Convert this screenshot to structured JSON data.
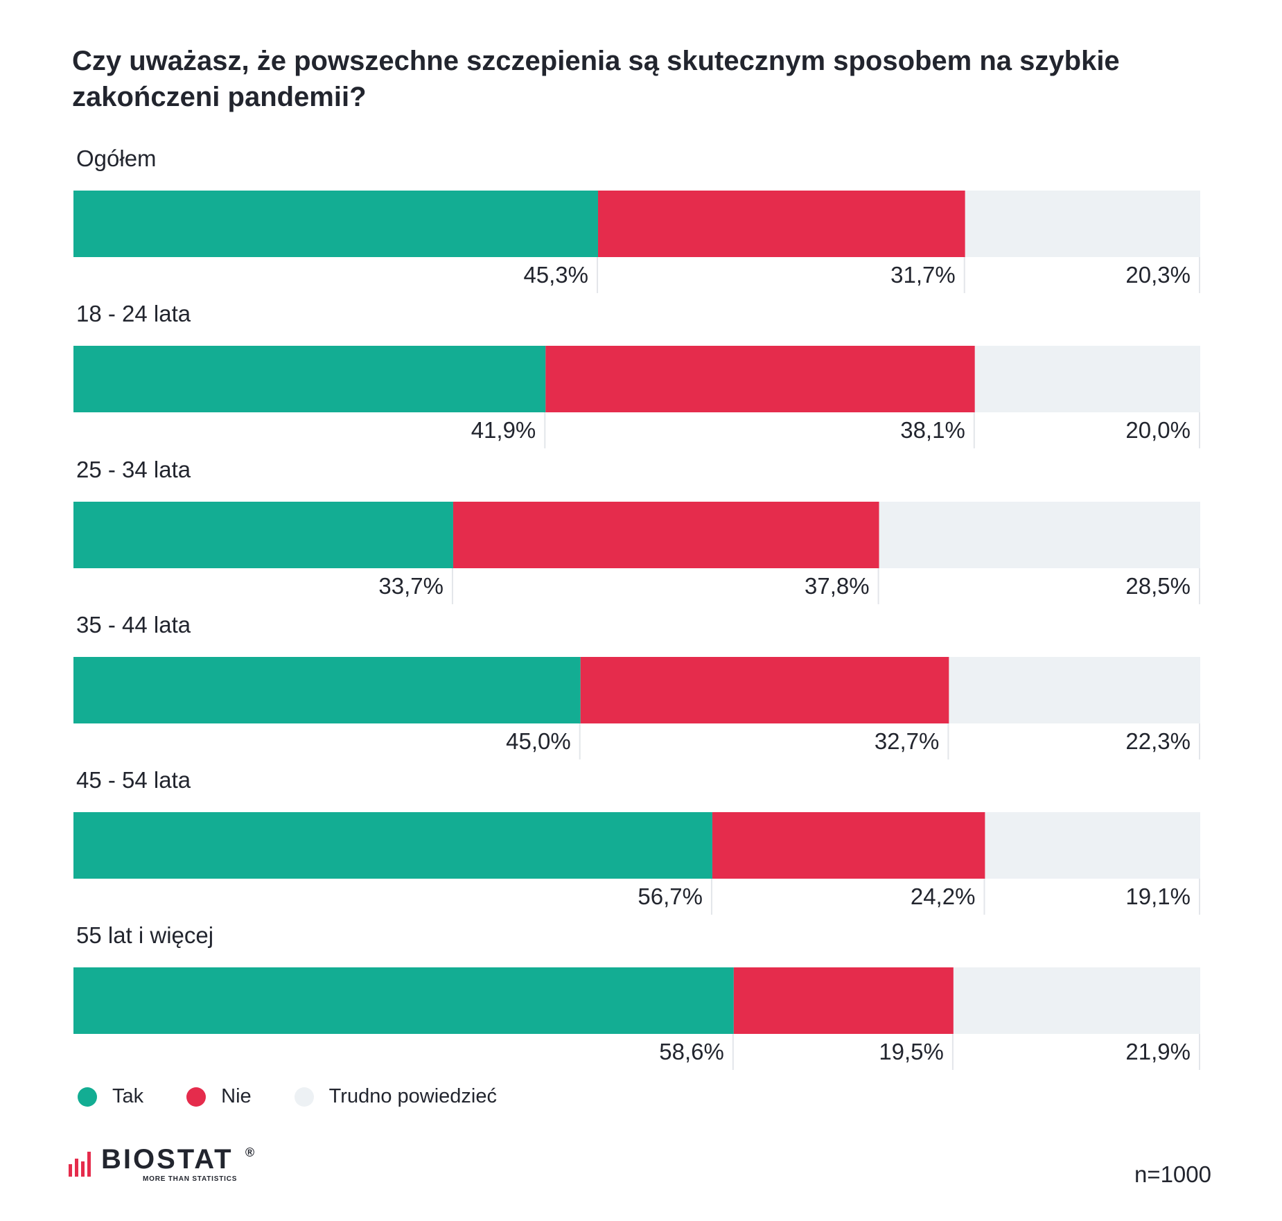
{
  "chart_data": {
    "type": "bar",
    "orientation": "horizontal",
    "stacked": true,
    "title": "Czy uważasz, że powszechne szczepienia są skutecznym sposobem na szybkie zakończeni pandemii?",
    "categories": [
      "Ogółem",
      "18 - 24 lata",
      "25 - 34 lata",
      "35 - 44 lata",
      "45 - 54 lata",
      "55 lat i więcej"
    ],
    "series": [
      {
        "name": "Tak",
        "color": "#13ad93",
        "values": [
          45.3,
          41.9,
          33.7,
          45.0,
          56.7,
          58.6
        ],
        "labels": [
          "45,3%",
          "41,9%",
          "33,7%",
          "45,0%",
          "56,7%",
          "58,6%"
        ]
      },
      {
        "name": "Nie",
        "color": "#e52c4c",
        "values": [
          31.7,
          38.1,
          37.8,
          32.7,
          24.2,
          19.5
        ],
        "labels": [
          "31,7%",
          "38,1%",
          "37,8%",
          "32,7%",
          "24,2%",
          "19,5%"
        ]
      },
      {
        "name": "Trudno powiedzieć",
        "color": "#edf1f4",
        "values": [
          20.3,
          20.0,
          28.5,
          22.3,
          19.1,
          21.9
        ],
        "labels": [
          "20,3%",
          "20,0%",
          "28,5%",
          "22,3%",
          "19,1%",
          "21,9%"
        ]
      }
    ],
    "legend": "bottom-left",
    "grid": false
  },
  "brand": {
    "name": "BIOSTAT",
    "registered": "®",
    "tagline": "MORE THAN STATISTICS",
    "color": "#e52c4c"
  },
  "sample_size": "n=1000"
}
